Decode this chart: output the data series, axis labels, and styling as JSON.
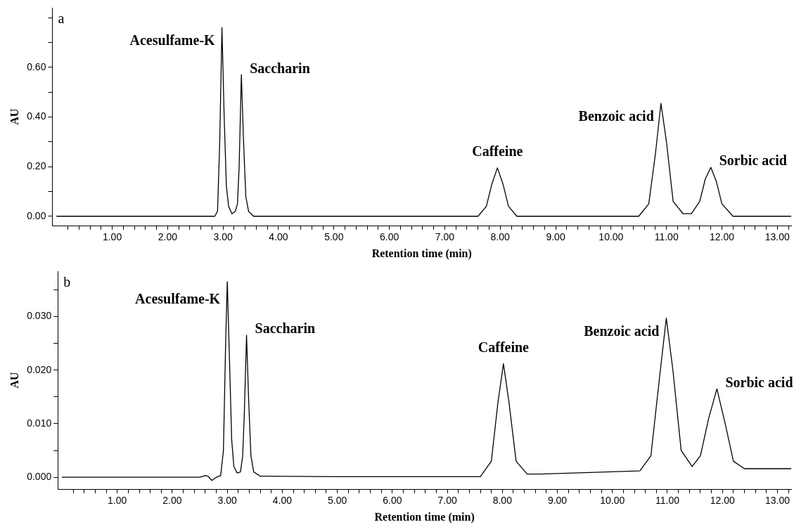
{
  "chart_data": [
    {
      "type": "line",
      "xlabel": "Retention time (min)",
      "ylabel": "AU",
      "grid": false,
      "legend": false,
      "marker": "none",
      "line_style": "solid",
      "annotations": [
        "a",
        {
          "text": "Acesulfame-K",
          "x": 2.98,
          "y": 0.76
        },
        {
          "text": "Saccharin",
          "x": 3.33,
          "y": 0.57
        },
        {
          "text": "Caffeine",
          "x": 7.95,
          "y": 0.195
        },
        {
          "text": "Benzoic acid",
          "x": 10.9,
          "y": 0.455
        },
        {
          "text": "Sorbic acid",
          "x": 11.8,
          "y": 0.197
        }
      ],
      "xlim": [
        -0.08,
        13.25
      ],
      "ylim": [
        -0.0375,
        0.839
      ],
      "xticks": [
        {
          "value": 0.2,
          "label": null
        },
        {
          "value": 0.4,
          "label": null
        },
        {
          "value": 0.6,
          "label": null
        },
        {
          "value": 0.8,
          "label": null
        },
        {
          "value": 1,
          "label": "1.00"
        },
        {
          "value": 1.2,
          "label": null
        },
        {
          "value": 1.4,
          "label": null
        },
        {
          "value": 1.6,
          "label": null
        },
        {
          "value": 1.8,
          "label": null
        },
        {
          "value": 2,
          "label": "2.00"
        },
        {
          "value": 2.2,
          "label": null
        },
        {
          "value": 2.4,
          "label": null
        },
        {
          "value": 2.6,
          "label": null
        },
        {
          "value": 2.8,
          "label": null
        },
        {
          "value": 3,
          "label": "3.00"
        },
        {
          "value": 3.2,
          "label": null
        },
        {
          "value": 3.4,
          "label": null
        },
        {
          "value": 3.6,
          "label": null
        },
        {
          "value": 3.8,
          "label": null
        },
        {
          "value": 4,
          "label": "4.00"
        },
        {
          "value": 4.2,
          "label": null
        },
        {
          "value": 4.4,
          "label": null
        },
        {
          "value": 4.6,
          "label": null
        },
        {
          "value": 4.8,
          "label": null
        },
        {
          "value": 5,
          "label": "5.00"
        },
        {
          "value": 5.2,
          "label": null
        },
        {
          "value": 5.4,
          "label": null
        },
        {
          "value": 5.6,
          "label": null
        },
        {
          "value": 5.8,
          "label": null
        },
        {
          "value": 6,
          "label": "6.00"
        },
        {
          "value": 6.2,
          "label": null
        },
        {
          "value": 6.4,
          "label": null
        },
        {
          "value": 6.6,
          "label": null
        },
        {
          "value": 6.8,
          "label": null
        },
        {
          "value": 7,
          "label": "7.00"
        },
        {
          "value": 7.2,
          "label": null
        },
        {
          "value": 7.4,
          "label": null
        },
        {
          "value": 7.6,
          "label": null
        },
        {
          "value": 7.8,
          "label": null
        },
        {
          "value": 8,
          "label": "8.00"
        },
        {
          "value": 8.2,
          "label": null
        },
        {
          "value": 8.4,
          "label": null
        },
        {
          "value": 8.6,
          "label": null
        },
        {
          "value": 8.8,
          "label": null
        },
        {
          "value": 9,
          "label": "9.00"
        },
        {
          "value": 9.2,
          "label": null
        },
        {
          "value": 9.4,
          "label": null
        },
        {
          "value": 9.6,
          "label": null
        },
        {
          "value": 9.8,
          "label": null
        },
        {
          "value": 10,
          "label": "10.00"
        },
        {
          "value": 10.2,
          "label": null
        },
        {
          "value": 10.4,
          "label": null
        },
        {
          "value": 10.6,
          "label": null
        },
        {
          "value": 10.8,
          "label": null
        },
        {
          "value": 11,
          "label": "11.00"
        },
        {
          "value": 11.2,
          "label": null
        },
        {
          "value": 11.4,
          "label": null
        },
        {
          "value": 11.6,
          "label": null
        },
        {
          "value": 11.8,
          "label": null
        },
        {
          "value": 12,
          "label": "12.00"
        },
        {
          "value": 12.2,
          "label": null
        },
        {
          "value": 12.4,
          "label": null
        },
        {
          "value": 12.6,
          "label": null
        },
        {
          "value": 12.8,
          "label": null
        },
        {
          "value": 13,
          "label": "13.00"
        },
        {
          "value": 13.2,
          "label": null
        }
      ],
      "yticks": [
        {
          "value": 0,
          "label": "0.00"
        },
        {
          "value": 0.1,
          "label": null
        },
        {
          "value": 0.2,
          "label": "0.20"
        },
        {
          "value": 0.3,
          "label": null
        },
        {
          "value": 0.4,
          "label": "0.40"
        },
        {
          "value": 0.5,
          "label": null
        },
        {
          "value": 0.6,
          "label": "0.60"
        },
        {
          "value": 0.7,
          "label": null
        },
        {
          "value": 0.8,
          "label": null
        }
      ],
      "series": [
        {
          "color": "#000000",
          "x": [
            0,
            2.85,
            2.9,
            2.94,
            2.98,
            3.02,
            3.06,
            3.1,
            3.16,
            3.22,
            3.26,
            3.29,
            3.33,
            3.37,
            3.41,
            3.46,
            3.55,
            7.6,
            7.75,
            7.85,
            7.95,
            8.05,
            8.15,
            8.3,
            10.5,
            10.68,
            10.8,
            10.9,
            11.0,
            11.12,
            11.3,
            11.45,
            11.6,
            11.7,
            11.8,
            11.9,
            12.0,
            12.2,
            13.25
          ],
          "values": [
            0,
            0,
            0.02,
            0.3,
            0.76,
            0.4,
            0.12,
            0.04,
            0.01,
            0.02,
            0.05,
            0.2,
            0.57,
            0.3,
            0.08,
            0.02,
            0,
            0,
            0.04,
            0.13,
            0.195,
            0.13,
            0.04,
            0,
            0,
            0.05,
            0.25,
            0.455,
            0.3,
            0.06,
            0.01,
            0.01,
            0.06,
            0.15,
            0.197,
            0.14,
            0.05,
            0,
            0
          ]
        }
      ]
    },
    {
      "type": "line",
      "xlabel": "Retention time (min)",
      "ylabel": "AU",
      "grid": false,
      "legend": false,
      "marker": "none",
      "line_style": "solid",
      "annotations": [
        "b",
        {
          "text": "Acesulfame-K",
          "x": 3.0,
          "y": 0.0365
        },
        {
          "text": "Saccharin",
          "x": 3.35,
          "y": 0.0265
        },
        {
          "text": "Caffeine",
          "x": 8.02,
          "y": 0.0212
        },
        {
          "text": "Benzoic acid",
          "x": 10.98,
          "y": 0.0297
        },
        {
          "text": "Sorbic acid",
          "x": 11.9,
          "y": 0.0165
        }
      ],
      "xlim": [
        -0.08,
        13.25
      ],
      "ylim": [
        -0.0022,
        0.0384
      ],
      "xticks": [
        {
          "value": 0.2,
          "label": null
        },
        {
          "value": 0.4,
          "label": null
        },
        {
          "value": 0.6,
          "label": null
        },
        {
          "value": 0.8,
          "label": null
        },
        {
          "value": 1,
          "label": "1.00"
        },
        {
          "value": 1.2,
          "label": null
        },
        {
          "value": 1.4,
          "label": null
        },
        {
          "value": 1.6,
          "label": null
        },
        {
          "value": 1.8,
          "label": null
        },
        {
          "value": 2,
          "label": "2.00"
        },
        {
          "value": 2.2,
          "label": null
        },
        {
          "value": 2.4,
          "label": null
        },
        {
          "value": 2.6,
          "label": null
        },
        {
          "value": 2.8,
          "label": null
        },
        {
          "value": 3,
          "label": "3.00"
        },
        {
          "value": 3.2,
          "label": null
        },
        {
          "value": 3.4,
          "label": null
        },
        {
          "value": 3.6,
          "label": null
        },
        {
          "value": 3.8,
          "label": null
        },
        {
          "value": 4,
          "label": "4.00"
        },
        {
          "value": 4.2,
          "label": null
        },
        {
          "value": 4.4,
          "label": null
        },
        {
          "value": 4.6,
          "label": null
        },
        {
          "value": 4.8,
          "label": null
        },
        {
          "value": 5,
          "label": "5.00"
        },
        {
          "value": 5.2,
          "label": null
        },
        {
          "value": 5.4,
          "label": null
        },
        {
          "value": 5.6,
          "label": null
        },
        {
          "value": 5.8,
          "label": null
        },
        {
          "value": 6,
          "label": "6.00"
        },
        {
          "value": 6.2,
          "label": null
        },
        {
          "value": 6.4,
          "label": null
        },
        {
          "value": 6.6,
          "label": null
        },
        {
          "value": 6.8,
          "label": null
        },
        {
          "value": 7,
          "label": "7.00"
        },
        {
          "value": 7.2,
          "label": null
        },
        {
          "value": 7.4,
          "label": null
        },
        {
          "value": 7.6,
          "label": null
        },
        {
          "value": 7.8,
          "label": null
        },
        {
          "value": 8,
          "label": "8.00"
        },
        {
          "value": 8.2,
          "label": null
        },
        {
          "value": 8.4,
          "label": null
        },
        {
          "value": 8.6,
          "label": null
        },
        {
          "value": 8.8,
          "label": null
        },
        {
          "value": 9,
          "label": "9.00"
        },
        {
          "value": 9.2,
          "label": null
        },
        {
          "value": 9.4,
          "label": null
        },
        {
          "value": 9.6,
          "label": null
        },
        {
          "value": 9.8,
          "label": null
        },
        {
          "value": 10,
          "label": "10.00"
        },
        {
          "value": 10.2,
          "label": null
        },
        {
          "value": 10.4,
          "label": null
        },
        {
          "value": 10.6,
          "label": null
        },
        {
          "value": 10.8,
          "label": null
        },
        {
          "value": 11,
          "label": "11.00"
        },
        {
          "value": 11.2,
          "label": null
        },
        {
          "value": 11.4,
          "label": null
        },
        {
          "value": 11.6,
          "label": null
        },
        {
          "value": 11.8,
          "label": null
        },
        {
          "value": 12,
          "label": "12.00"
        },
        {
          "value": 12.2,
          "label": null
        },
        {
          "value": 12.4,
          "label": null
        },
        {
          "value": 12.6,
          "label": null
        },
        {
          "value": 12.8,
          "label": null
        },
        {
          "value": 13,
          "label": "13.00"
        },
        {
          "value": 13.2,
          "label": null
        }
      ],
      "yticks": [
        {
          "value": 0,
          "label": "0.000"
        },
        {
          "value": 0.005,
          "label": null
        },
        {
          "value": 0.01,
          "label": "0.010"
        },
        {
          "value": 0.015,
          "label": null
        },
        {
          "value": 0.02,
          "label": "0.020"
        },
        {
          "value": 0.025,
          "label": null
        },
        {
          "value": 0.03,
          "label": "0.030"
        },
        {
          "value": 0.035,
          "label": null
        }
      ],
      "series": [
        {
          "color": "#000000",
          "x": [
            0,
            2.5,
            2.6,
            2.65,
            2.72,
            2.8,
            2.88,
            2.93,
            2.97,
            3.0,
            3.04,
            3.08,
            3.12,
            3.18,
            3.24,
            3.28,
            3.31,
            3.35,
            3.39,
            3.43,
            3.48,
            3.6,
            5,
            7.6,
            7.8,
            7.92,
            8.02,
            8.12,
            8.25,
            8.45,
            8.7,
            10.5,
            10.7,
            10.85,
            10.98,
            11.1,
            11.25,
            11.45,
            11.6,
            11.75,
            11.9,
            12.05,
            12.2,
            12.4,
            13.25
          ],
          "values": [
            0,
            0,
            0.0003,
            0.0002,
            -0.0006,
            0,
            0.0003,
            0.005,
            0.025,
            0.0365,
            0.022,
            0.007,
            0.002,
            0.0008,
            0.001,
            0.004,
            0.012,
            0.0265,
            0.014,
            0.004,
            0.001,
            0.0002,
            0.0001,
            0.0001,
            0.003,
            0.014,
            0.0212,
            0.014,
            0.003,
            0.0006,
            0.0006,
            0.0012,
            0.004,
            0.018,
            0.0297,
            0.02,
            0.005,
            0.002,
            0.004,
            0.011,
            0.0165,
            0.01,
            0.003,
            0.0016,
            0.0016
          ]
        }
      ]
    }
  ]
}
